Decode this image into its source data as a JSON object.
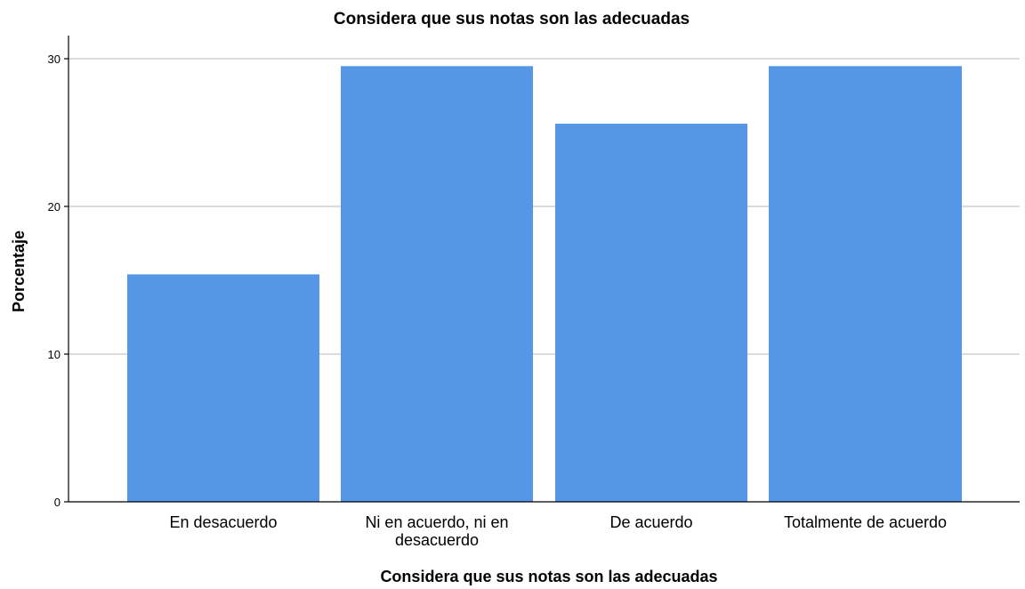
{
  "chart_data": {
    "type": "bar",
    "title": "Considera que sus notas son las adecuadas",
    "xlabel": "Considera que sus notas son las adecuadas",
    "ylabel": "Porcentaje",
    "categories": [
      "En desacuerdo",
      "Ni en acuerdo, ni en desacuerdo",
      "De acuerdo",
      "Totalmente de acuerdo"
    ],
    "category_lines": [
      [
        "En desacuerdo"
      ],
      [
        "Ni en acuerdo, ni en",
        "desacuerdo"
      ],
      [
        "De acuerdo"
      ],
      [
        "Totalmente de acuerdo"
      ]
    ],
    "values": [
      15.4,
      29.5,
      25.6,
      29.5
    ],
    "ylim": [
      0,
      31.5
    ],
    "yticks": [
      0,
      10,
      20,
      30
    ],
    "ytick_labels": [
      "0",
      "10",
      "20",
      "30"
    ],
    "grid": true,
    "bar_color": "#5596e6",
    "grid_color": "#c8c8c8",
    "axis_color": "#000000"
  }
}
